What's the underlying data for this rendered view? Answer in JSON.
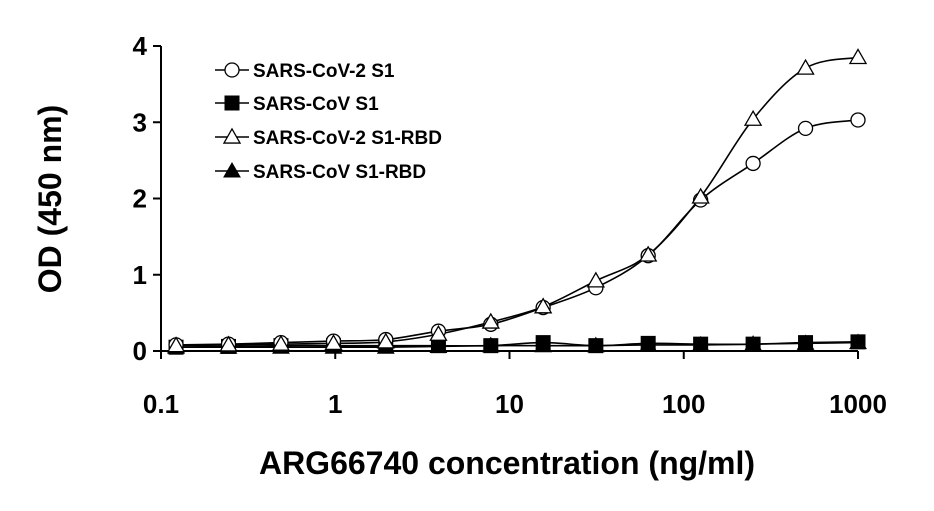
{
  "chart_data": {
    "type": "line",
    "title": "",
    "xlabel": "ARG66740 concentration (ng/ml)",
    "ylabel": "OD (450 nm)",
    "xscale": "log",
    "xlim": [
      0.1,
      1000
    ],
    "ylim": [
      0,
      4
    ],
    "x_ticks": [
      "0.1",
      "1",
      "10",
      "100",
      "1000"
    ],
    "y_ticks": [
      "0",
      "1",
      "2",
      "3",
      "4"
    ],
    "grid": false,
    "legend_position": "top-left",
    "x": [
      0.122,
      0.244,
      0.488,
      0.977,
      1.95,
      3.91,
      7.81,
      15.6,
      31.3,
      62.5,
      125,
      250,
      500,
      1000
    ],
    "series": [
      {
        "name": "SARS-CoV-2 S1",
        "marker": "circle-open",
        "values": [
          0.08,
          0.09,
          0.11,
          0.13,
          0.15,
          0.26,
          0.35,
          0.57,
          0.83,
          1.25,
          1.98,
          2.46,
          2.92,
          3.03
        ]
      },
      {
        "name": "SARS-CoV S1",
        "marker": "square-filled",
        "values": [
          0.05,
          0.06,
          0.07,
          0.07,
          0.07,
          0.07,
          0.07,
          0.11,
          0.07,
          0.1,
          0.09,
          0.09,
          0.11,
          0.12
        ]
      },
      {
        "name": "SARS-CoV-2 S1-RBD",
        "marker": "triangle-open",
        "values": [
          0.07,
          0.08,
          0.09,
          0.1,
          0.12,
          0.22,
          0.38,
          0.58,
          0.92,
          1.26,
          2.02,
          3.04,
          3.71,
          3.85
        ]
      },
      {
        "name": "SARS-CoV S1-RBD",
        "marker": "triangle-filled",
        "values": [
          0.05,
          0.05,
          0.05,
          0.05,
          0.05,
          0.06,
          0.07,
          0.07,
          0.07,
          0.08,
          0.08,
          0.09,
          0.1,
          0.11
        ]
      }
    ]
  }
}
